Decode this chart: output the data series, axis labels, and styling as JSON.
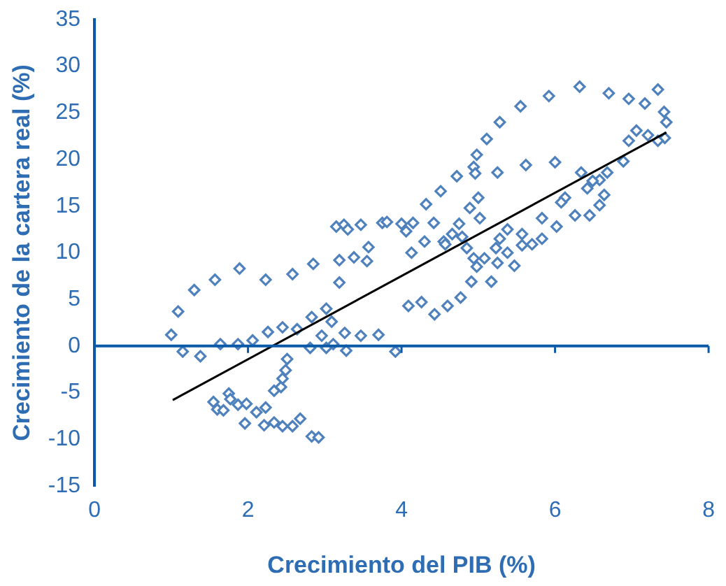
{
  "chart_data": {
    "type": "scatter",
    "xlabel": "Crecimiento del PIB (%)",
    "ylabel": "Crecimiento de la cartera real (%)",
    "xlim": [
      0,
      8
    ],
    "xticks": [
      0,
      2,
      4,
      6,
      8
    ],
    "ylim": [
      -15,
      35
    ],
    "yticks": [
      -15,
      -10,
      -5,
      0,
      5,
      10,
      15,
      20,
      25,
      30,
      35
    ],
    "grid": false,
    "legend": false,
    "marker": "diamond",
    "ref_lines": [
      {
        "axis": "y",
        "value": 0,
        "color": "#0b5aa8"
      }
    ],
    "series": [
      {
        "color": "#4f81bd",
        "x": [
          1.0,
          1.09,
          1.3,
          1.57,
          1.89,
          2.23,
          2.58,
          2.85,
          3.19,
          3.38,
          3.57,
          3.55,
          3.19,
          1.15,
          1.38,
          1.64,
          1.87,
          2.06,
          2.26,
          2.45,
          2.64,
          2.83,
          3.02,
          3.09,
          2.96,
          2.81,
          3.02,
          3.11,
          3.28,
          3.26,
          3.47,
          3.7,
          3.92,
          1.55,
          1.6,
          1.68,
          1.75,
          1.77,
          1.87,
          1.98,
          1.96,
          2.11,
          2.21,
          2.23,
          2.34,
          2.45,
          2.58,
          2.68,
          2.83,
          2.92,
          2.34,
          2.43,
          2.45,
          2.49,
          2.51,
          3.15,
          3.25,
          3.3,
          3.47,
          3.75,
          3.81,
          4.0,
          6.32,
          5.92,
          5.55,
          5.28,
          5.11,
          4.98,
          4.94,
          4.96,
          4.72,
          4.51,
          4.32,
          4.06,
          4.13,
          4.3,
          4.55,
          4.66,
          4.75,
          4.89,
          5.0,
          5.02,
          5.25,
          5.62,
          6.0,
          6.7,
          6.96,
          7.17,
          7.34,
          7.42,
          7.45,
          7.43,
          7.34,
          7.21,
          7.06,
          6.96,
          6.89,
          6.68,
          6.58,
          6.49,
          6.42,
          6.34,
          6.64,
          6.58,
          6.45,
          6.26,
          6.13,
          6.08,
          5.83,
          6.02,
          5.83,
          5.7,
          5.57,
          5.57,
          5.38,
          5.28,
          5.38,
          5.23,
          5.08,
          4.94,
          4.85,
          4.79,
          4.57,
          4.98,
          4.91,
          5.17,
          5.25,
          5.47,
          4.09,
          4.26,
          4.43,
          4.6,
          4.77,
          4.15,
          4.42
        ],
        "values": [
          1.2,
          3.7,
          6.0,
          7.1,
          8.3,
          7.1,
          7.7,
          8.8,
          9.2,
          9.5,
          10.6,
          9.1,
          6.8,
          -0.6,
          -1.1,
          0.2,
          0.2,
          0.6,
          1.5,
          2.0,
          1.8,
          3.1,
          4.0,
          2.6,
          1.1,
          -0.2,
          -0.2,
          0.2,
          -0.5,
          1.4,
          1.1,
          1.2,
          -0.6,
          -6.0,
          -6.8,
          -6.9,
          -5.1,
          -5.7,
          -6.3,
          -6.2,
          -8.3,
          -7.1,
          -8.5,
          -6.6,
          -8.2,
          -8.6,
          -8.6,
          -7.8,
          -9.7,
          -9.8,
          -4.8,
          -4.4,
          -3.5,
          -2.6,
          -1.4,
          12.8,
          13.0,
          12.5,
          13.0,
          13.2,
          13.3,
          13.1,
          27.8,
          26.8,
          25.7,
          24.0,
          22.2,
          20.5,
          19.2,
          18.5,
          18.2,
          16.6,
          15.2,
          12.3,
          10.0,
          11.2,
          11.2,
          12.0,
          13.1,
          14.8,
          15.9,
          13.7,
          18.6,
          19.4,
          19.7,
          27.1,
          26.5,
          26.0,
          27.5,
          25.1,
          24.0,
          22.3,
          22.0,
          22.6,
          23.1,
          22.0,
          19.8,
          18.6,
          17.8,
          17.7,
          16.9,
          18.6,
          16.2,
          15.1,
          14.0,
          14.0,
          15.9,
          15.4,
          13.7,
          12.8,
          11.5,
          10.9,
          12.0,
          10.8,
          12.5,
          11.5,
          10.0,
          10.5,
          9.4,
          9.4,
          10.5,
          11.7,
          10.9,
          8.5,
          6.9,
          6.9,
          8.9,
          8.6,
          4.3,
          4.7,
          3.4,
          4.3,
          5.2,
          13.2,
          13.2
        ]
      },
      {
        "type": "line",
        "color": "#000000",
        "marker": "none",
        "x": [
          1.02,
          7.45
        ],
        "values": [
          -5.8,
          22.9
        ]
      }
    ]
  }
}
